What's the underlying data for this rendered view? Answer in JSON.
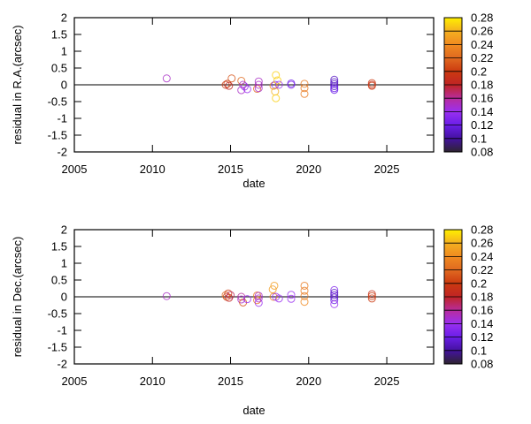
{
  "chart_data": [
    {
      "type": "scatter",
      "xlabel": "date",
      "ylabel": "residual in R.A.(arcsec)",
      "xlim": [
        2005,
        2028
      ],
      "ylim": [
        -2,
        2
      ],
      "xticks": [
        "2005",
        "2010",
        "2015",
        "2020",
        "2025"
      ],
      "yticks": [
        "-2",
        "-1.5",
        "-1",
        "-0.5",
        "0",
        "0.5",
        "1",
        "1.5",
        "2"
      ],
      "reference_line_y": 0,
      "colorbar": {
        "range": [
          0.08,
          0.28
        ],
        "ticks": [
          "0.08",
          "0.1",
          "0.12",
          "0.14",
          "0.16",
          "0.18",
          "0.2",
          "0.22",
          "0.24",
          "0.26",
          "0.28"
        ]
      },
      "points": [
        {
          "x": 2010.91,
          "y": 0.19,
          "c": 0.15
        },
        {
          "x": 2014.69,
          "y": 0.0,
          "c": 0.2
        },
        {
          "x": 2014.8,
          "y": 0.03,
          "c": 0.2
        },
        {
          "x": 2014.9,
          "y": -0.03,
          "c": 0.18
        },
        {
          "x": 2015.07,
          "y": 0.19,
          "c": 0.21
        },
        {
          "x": 2015.69,
          "y": 0.12,
          "c": 0.22
        },
        {
          "x": 2015.69,
          "y": -0.16,
          "c": 0.15
        },
        {
          "x": 2015.8,
          "y": 0.0,
          "c": 0.15
        },
        {
          "x": 2015.9,
          "y": -0.05,
          "c": 0.14
        },
        {
          "x": 2016.07,
          "y": -0.13,
          "c": 0.14
        },
        {
          "x": 2016.7,
          "y": -0.12,
          "c": 0.22
        },
        {
          "x": 2016.8,
          "y": 0.1,
          "c": 0.15
        },
        {
          "x": 2016.8,
          "y": 0.0,
          "c": 0.15
        },
        {
          "x": 2016.8,
          "y": -0.1,
          "c": 0.15
        },
        {
          "x": 2017.75,
          "y": -0.03,
          "c": 0.24
        },
        {
          "x": 2017.85,
          "y": 0.0,
          "c": 0.13
        },
        {
          "x": 2017.9,
          "y": 0.29,
          "c": 0.27
        },
        {
          "x": 2018.0,
          "y": 0.13,
          "c": 0.27
        },
        {
          "x": 2017.85,
          "y": -0.2,
          "c": 0.26
        },
        {
          "x": 2017.9,
          "y": -0.4,
          "c": 0.27
        },
        {
          "x": 2018.1,
          "y": 0.0,
          "c": 0.14
        },
        {
          "x": 2018.88,
          "y": 0.0,
          "c": 0.13
        },
        {
          "x": 2018.88,
          "y": 0.04,
          "c": 0.12
        },
        {
          "x": 2019.73,
          "y": 0.03,
          "c": 0.23
        },
        {
          "x": 2019.73,
          "y": -0.1,
          "c": 0.23
        },
        {
          "x": 2019.73,
          "y": -0.27,
          "c": 0.23
        },
        {
          "x": 2021.64,
          "y": 0.15,
          "c": 0.11
        },
        {
          "x": 2021.64,
          "y": 0.08,
          "c": 0.11
        },
        {
          "x": 2021.64,
          "y": 0.02,
          "c": 0.11
        },
        {
          "x": 2021.64,
          "y": -0.04,
          "c": 0.11
        },
        {
          "x": 2021.64,
          "y": -0.1,
          "c": 0.12
        },
        {
          "x": 2021.64,
          "y": -0.15,
          "c": 0.12
        },
        {
          "x": 2024.05,
          "y": 0.05,
          "c": 0.2
        },
        {
          "x": 2024.05,
          "y": 0.0,
          "c": 0.19
        },
        {
          "x": 2024.05,
          "y": -0.03,
          "c": 0.2
        }
      ]
    },
    {
      "type": "scatter",
      "xlabel": "date",
      "ylabel": "residual in Dec.(arcsec)",
      "xlim": [
        2005,
        2028
      ],
      "ylim": [
        -2,
        2
      ],
      "xticks": [
        "2005",
        "2010",
        "2015",
        "2020",
        "2025"
      ],
      "yticks": [
        "-2",
        "-1.5",
        "-1",
        "-0.5",
        "0",
        "0.5",
        "1",
        "1.5",
        "2"
      ],
      "reference_line_y": 0,
      "colorbar": {
        "range": [
          0.08,
          0.28
        ],
        "ticks": [
          "0.08",
          "0.1",
          "0.12",
          "0.14",
          "0.16",
          "0.18",
          "0.2",
          "0.22",
          "0.24",
          "0.26",
          "0.28"
        ]
      },
      "points": [
        {
          "x": 2010.91,
          "y": 0.02,
          "c": 0.15
        },
        {
          "x": 2014.69,
          "y": 0.05,
          "c": 0.22
        },
        {
          "x": 2014.75,
          "y": 0.0,
          "c": 0.21
        },
        {
          "x": 2014.85,
          "y": 0.1,
          "c": 0.2
        },
        {
          "x": 2014.9,
          "y": -0.03,
          "c": 0.18
        },
        {
          "x": 2015.0,
          "y": 0.05,
          "c": 0.17
        },
        {
          "x": 2015.69,
          "y": 0.0,
          "c": 0.16
        },
        {
          "x": 2015.69,
          "y": -0.08,
          "c": 0.15
        },
        {
          "x": 2015.8,
          "y": -0.17,
          "c": 0.21
        },
        {
          "x": 2016.07,
          "y": -0.07,
          "c": 0.14
        },
        {
          "x": 2016.7,
          "y": 0.04,
          "c": 0.23
        },
        {
          "x": 2016.7,
          "y": -0.1,
          "c": 0.23
        },
        {
          "x": 2016.8,
          "y": 0.03,
          "c": 0.15
        },
        {
          "x": 2016.8,
          "y": -0.05,
          "c": 0.15
        },
        {
          "x": 2016.8,
          "y": -0.18,
          "c": 0.14
        },
        {
          "x": 2017.8,
          "y": 0.33,
          "c": 0.25
        },
        {
          "x": 2017.7,
          "y": 0.22,
          "c": 0.25
        },
        {
          "x": 2017.75,
          "y": 0.0,
          "c": 0.23
        },
        {
          "x": 2017.9,
          "y": 0.0,
          "c": 0.14
        },
        {
          "x": 2018.1,
          "y": -0.05,
          "c": 0.14
        },
        {
          "x": 2018.88,
          "y": 0.06,
          "c": 0.14
        },
        {
          "x": 2018.88,
          "y": -0.06,
          "c": 0.14
        },
        {
          "x": 2019.73,
          "y": 0.33,
          "c": 0.23
        },
        {
          "x": 2019.73,
          "y": 0.18,
          "c": 0.23
        },
        {
          "x": 2019.73,
          "y": 0.02,
          "c": 0.23
        },
        {
          "x": 2019.73,
          "y": -0.15,
          "c": 0.24
        },
        {
          "x": 2021.64,
          "y": 0.2,
          "c": 0.13
        },
        {
          "x": 2021.64,
          "y": 0.12,
          "c": 0.11
        },
        {
          "x": 2021.64,
          "y": 0.05,
          "c": 0.11
        },
        {
          "x": 2021.64,
          "y": -0.02,
          "c": 0.11
        },
        {
          "x": 2021.64,
          "y": -0.1,
          "c": 0.12
        },
        {
          "x": 2021.64,
          "y": -0.22,
          "c": 0.14
        },
        {
          "x": 2024.05,
          "y": 0.08,
          "c": 0.19
        },
        {
          "x": 2024.05,
          "y": 0.02,
          "c": 0.2
        },
        {
          "x": 2024.05,
          "y": -0.05,
          "c": 0.2
        }
      ]
    }
  ],
  "colormap": [
    {
      "v": 0.08,
      "color": "#2e2430"
    },
    {
      "v": 0.1,
      "color": "#4412a0"
    },
    {
      "v": 0.12,
      "color": "#6a1ee8"
    },
    {
      "v": 0.14,
      "color": "#9a30f0"
    },
    {
      "v": 0.16,
      "color": "#b82c9c"
    },
    {
      "v": 0.18,
      "color": "#c02424"
    },
    {
      "v": 0.2,
      "color": "#cc3a10"
    },
    {
      "v": 0.22,
      "color": "#e06a20"
    },
    {
      "v": 0.24,
      "color": "#f08a20"
    },
    {
      "v": 0.26,
      "color": "#f4b020"
    },
    {
      "v": 0.28,
      "color": "#fff000"
    }
  ]
}
